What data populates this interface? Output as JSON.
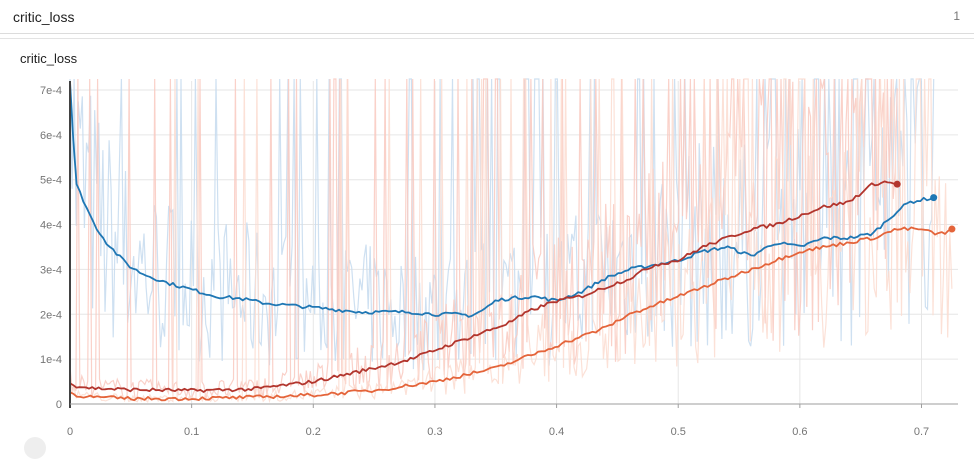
{
  "header": {
    "title": "critic_loss",
    "count": "1"
  },
  "card": {
    "title": "critic_loss"
  },
  "chart_data": {
    "type": "line",
    "title": "critic_loss",
    "xlabel": "",
    "ylabel": "",
    "xlim": [
      0,
      0.73
    ],
    "ylim": [
      0,
      0.00072
    ],
    "x_ticks": [
      "0",
      "0.1",
      "0.2",
      "0.3",
      "0.4",
      "0.5",
      "0.6",
      "0.7"
    ],
    "x_tick_values": [
      0,
      0.1,
      0.2,
      0.3,
      0.4,
      0.5,
      0.6,
      0.7
    ],
    "y_ticks": [
      "0",
      "1e-4",
      "2e-4",
      "3e-4",
      "4e-4",
      "5e-4",
      "6e-4",
      "7e-4"
    ],
    "y_tick_values": [
      0,
      0.0001,
      0.0002,
      0.0003,
      0.0004,
      0.0005,
      0.0006,
      0.0007
    ],
    "grid": true,
    "series": [
      {
        "color": "#1f77b4",
        "raw_color": "#c6dbef",
        "x": [
          0,
          0.002,
          0.005,
          0.01,
          0.015,
          0.02,
          0.03,
          0.04,
          0.05,
          0.06,
          0.08,
          0.1,
          0.12,
          0.14,
          0.16,
          0.18,
          0.2,
          0.22,
          0.24,
          0.26,
          0.28,
          0.3,
          0.32,
          0.33,
          0.34,
          0.35,
          0.36,
          0.38,
          0.4,
          0.42,
          0.44,
          0.46,
          0.48,
          0.5,
          0.52,
          0.54,
          0.56,
          0.58,
          0.6,
          0.62,
          0.64,
          0.66,
          0.68,
          0.69,
          0.7,
          0.71
        ],
        "y": [
          0.00072,
          0.00062,
          0.00049,
          0.00046,
          0.00043,
          0.0004,
          0.00036,
          0.00033,
          0.000305,
          0.00029,
          0.00027,
          0.000255,
          0.00024,
          0.000235,
          0.000225,
          0.00022,
          0.000215,
          0.00021,
          0.000205,
          0.000205,
          0.000205,
          0.0002,
          0.0002,
          0.000197,
          0.00021,
          0.00023,
          0.000235,
          0.00024,
          0.00023,
          0.00025,
          0.00028,
          0.0003,
          0.00031,
          0.00032,
          0.00034,
          0.00035,
          0.00033,
          0.00036,
          0.00035,
          0.00037,
          0.00037,
          0.00038,
          0.00043,
          0.00045,
          0.000455,
          0.00046
        ]
      },
      {
        "color": "#b2352d",
        "raw_color": "#f9c9bf",
        "x": [
          0,
          0.005,
          0.02,
          0.05,
          0.1,
          0.15,
          0.2,
          0.25,
          0.28,
          0.3,
          0.32,
          0.34,
          0.36,
          0.38,
          0.4,
          0.42,
          0.44,
          0.46,
          0.48,
          0.5,
          0.52,
          0.54,
          0.56,
          0.58,
          0.6,
          0.62,
          0.64,
          0.65,
          0.66,
          0.67,
          0.68
        ],
        "y": [
          5e-05,
          4e-05,
          3.5e-05,
          3.2e-05,
          3e-05,
          3.3e-05,
          5e-05,
          8e-05,
          0.0001,
          0.00012,
          0.00014,
          0.00016,
          0.00018,
          0.00021,
          0.00023,
          0.00024,
          0.00026,
          0.00028,
          0.00031,
          0.00032,
          0.00035,
          0.00037,
          0.00039,
          0.0004,
          0.00042,
          0.00044,
          0.00045,
          0.00047,
          0.00049,
          0.000495,
          0.00049
        ]
      },
      {
        "color": "#e4643a",
        "raw_color": "#fcdcd0",
        "x": [
          0,
          0.005,
          0.02,
          0.05,
          0.1,
          0.15,
          0.2,
          0.25,
          0.3,
          0.35,
          0.38,
          0.4,
          0.42,
          0.44,
          0.46,
          0.48,
          0.5,
          0.52,
          0.54,
          0.56,
          0.58,
          0.6,
          0.62,
          0.64,
          0.66,
          0.68,
          0.7,
          0.71,
          0.72,
          0.725
        ],
        "y": [
          2.5e-05,
          2e-05,
          1.5e-05,
          1.2e-05,
          1.2e-05,
          1.5e-05,
          2e-05,
          3e-05,
          5e-05,
          8e-05,
          0.00011,
          0.00013,
          0.00015,
          0.00017,
          0.0002,
          0.00022,
          0.00024,
          0.00026,
          0.00028,
          0.0003,
          0.00032,
          0.00034,
          0.00035,
          0.00036,
          0.00037,
          0.00039,
          0.00039,
          0.00038,
          0.00038,
          0.00039
        ]
      }
    ]
  }
}
